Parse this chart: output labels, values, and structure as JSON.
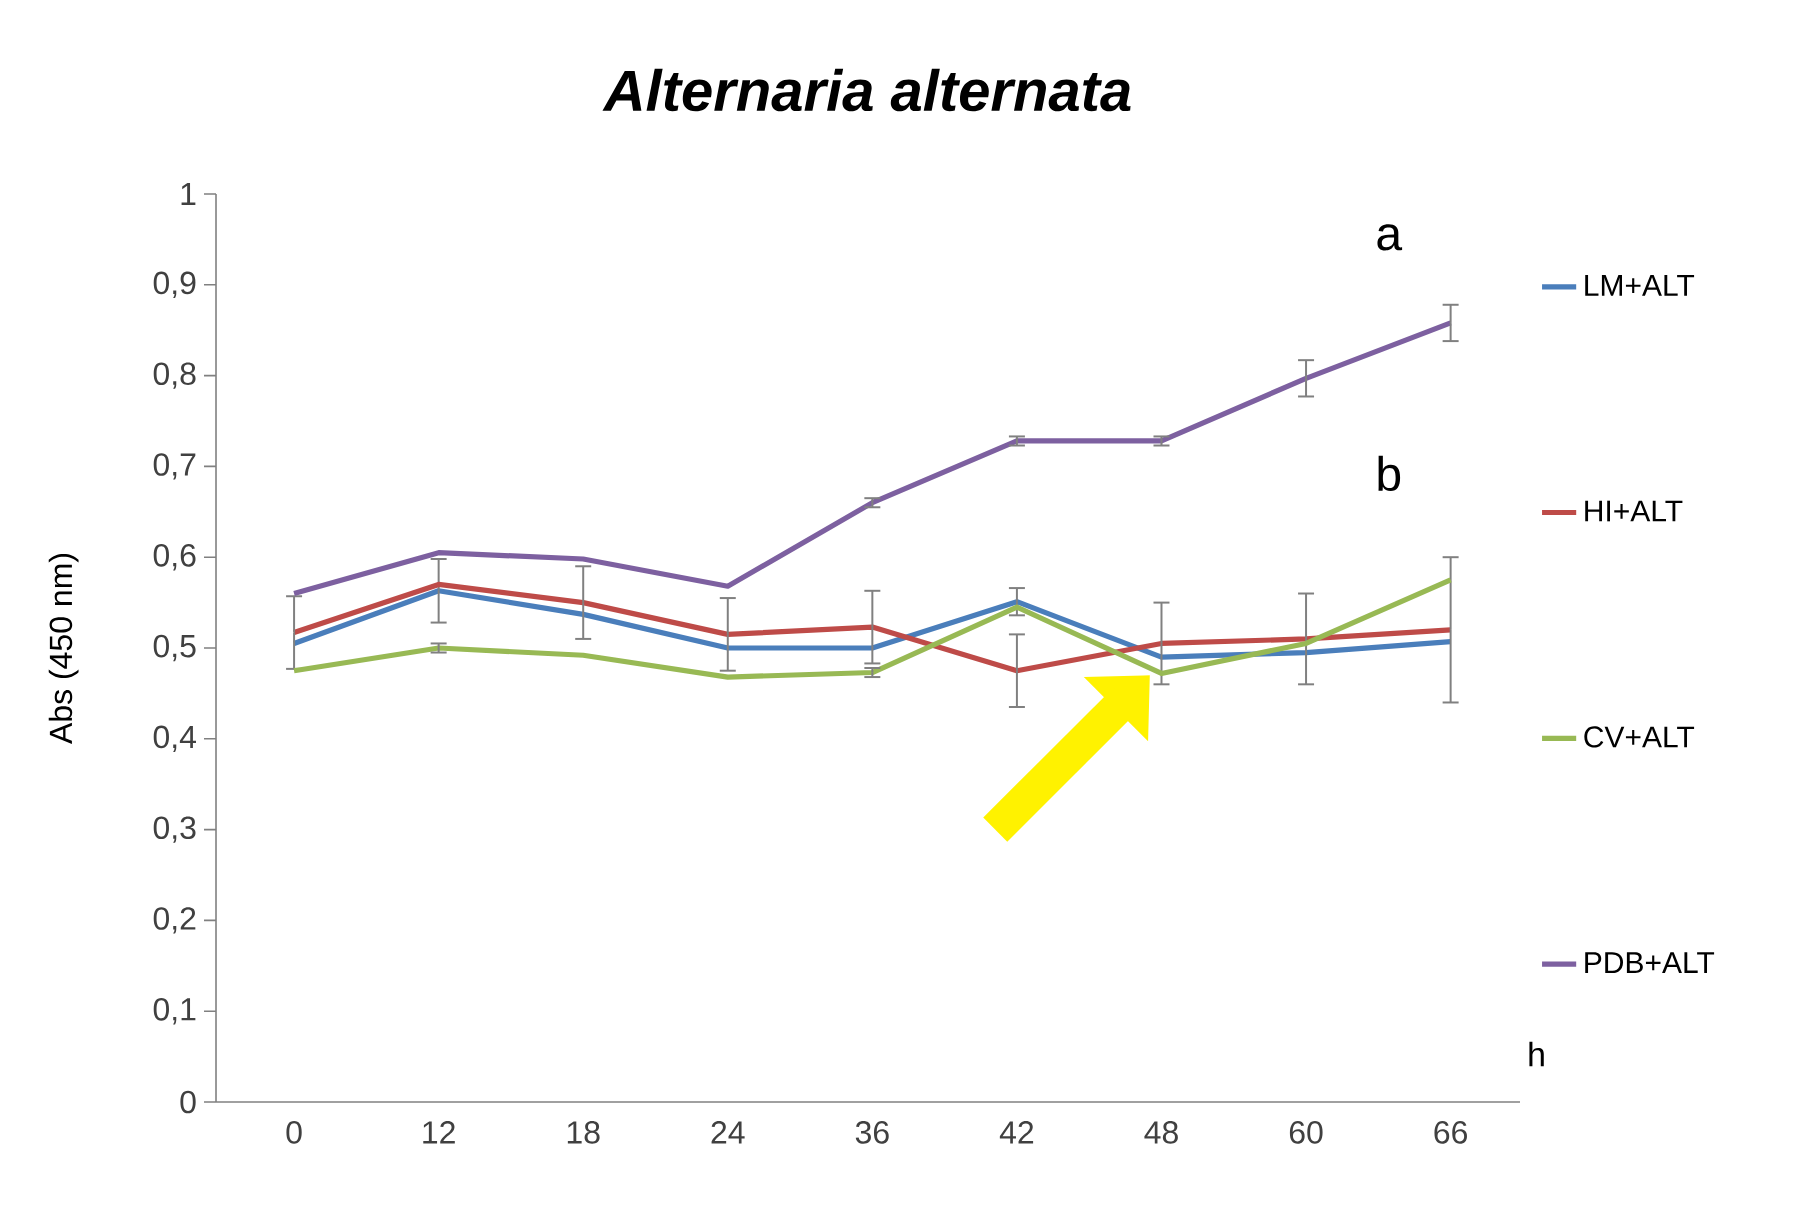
{
  "chart_data": {
    "type": "line",
    "title": "Alternaria alternata",
    "xlabel": "h",
    "ylabel": "Abs (450 nm)",
    "categories": [
      "0",
      "12",
      "18",
      "24",
      "36",
      "42",
      "48",
      "60",
      "66"
    ],
    "series": [
      {
        "name": "LM+ALT",
        "color": "#4a7ebb",
        "values": [
          0.505,
          0.563,
          0.537,
          0.5,
          0.5,
          0.551,
          0.49,
          0.495,
          0.507
        ],
        "errors": [
          null,
          0.035,
          null,
          null,
          null,
          0.015,
          null,
          null,
          null
        ]
      },
      {
        "name": "HI+ALT",
        "color": "#be4b48",
        "values": [
          0.517,
          0.57,
          0.55,
          0.515,
          0.523,
          0.475,
          0.505,
          0.51,
          0.52
        ],
        "errors": [
          0.04,
          null,
          0.04,
          0.04,
          0.04,
          0.04,
          0.045,
          0.05,
          0.08
        ]
      },
      {
        "name": "CV+ALT",
        "color": "#98b954",
        "values": [
          0.475,
          0.5,
          0.492,
          0.468,
          0.473,
          0.545,
          0.472,
          0.505,
          0.575
        ],
        "errors": [
          null,
          0.005,
          null,
          null,
          0.005,
          null,
          null,
          null,
          null
        ]
      },
      {
        "name": "PDB+ALT",
        "color": "#7d60a0",
        "values": [
          0.56,
          0.605,
          0.598,
          0.568,
          0.66,
          0.728,
          0.728,
          0.797,
          0.858
        ],
        "errors": [
          null,
          null,
          null,
          null,
          0.005,
          0.005,
          0.005,
          0.02,
          0.02
        ]
      }
    ],
    "ylim": [
      0,
      1
    ],
    "yticks": [
      0,
      {
        "value": 0.1,
        "label": "0,1"
      },
      {
        "value": 0.2,
        "label": "0,2"
      },
      {
        "value": 0.3,
        "label": "0,3"
      },
      {
        "value": 0.4,
        "label": "0,4"
      },
      {
        "value": 0.5,
        "label": "0,5"
      },
      {
        "value": 0.6,
        "label": "0,6"
      },
      {
        "value": 0.7,
        "label": "0,7"
      },
      {
        "value": 0.8,
        "label": "0,8"
      },
      {
        "value": 0.9,
        "label": "0,9"
      },
      1
    ],
    "annotations": [
      "a",
      "b"
    ],
    "legend": "right",
    "grid": false,
    "marker": "none",
    "line_style": "solid"
  }
}
